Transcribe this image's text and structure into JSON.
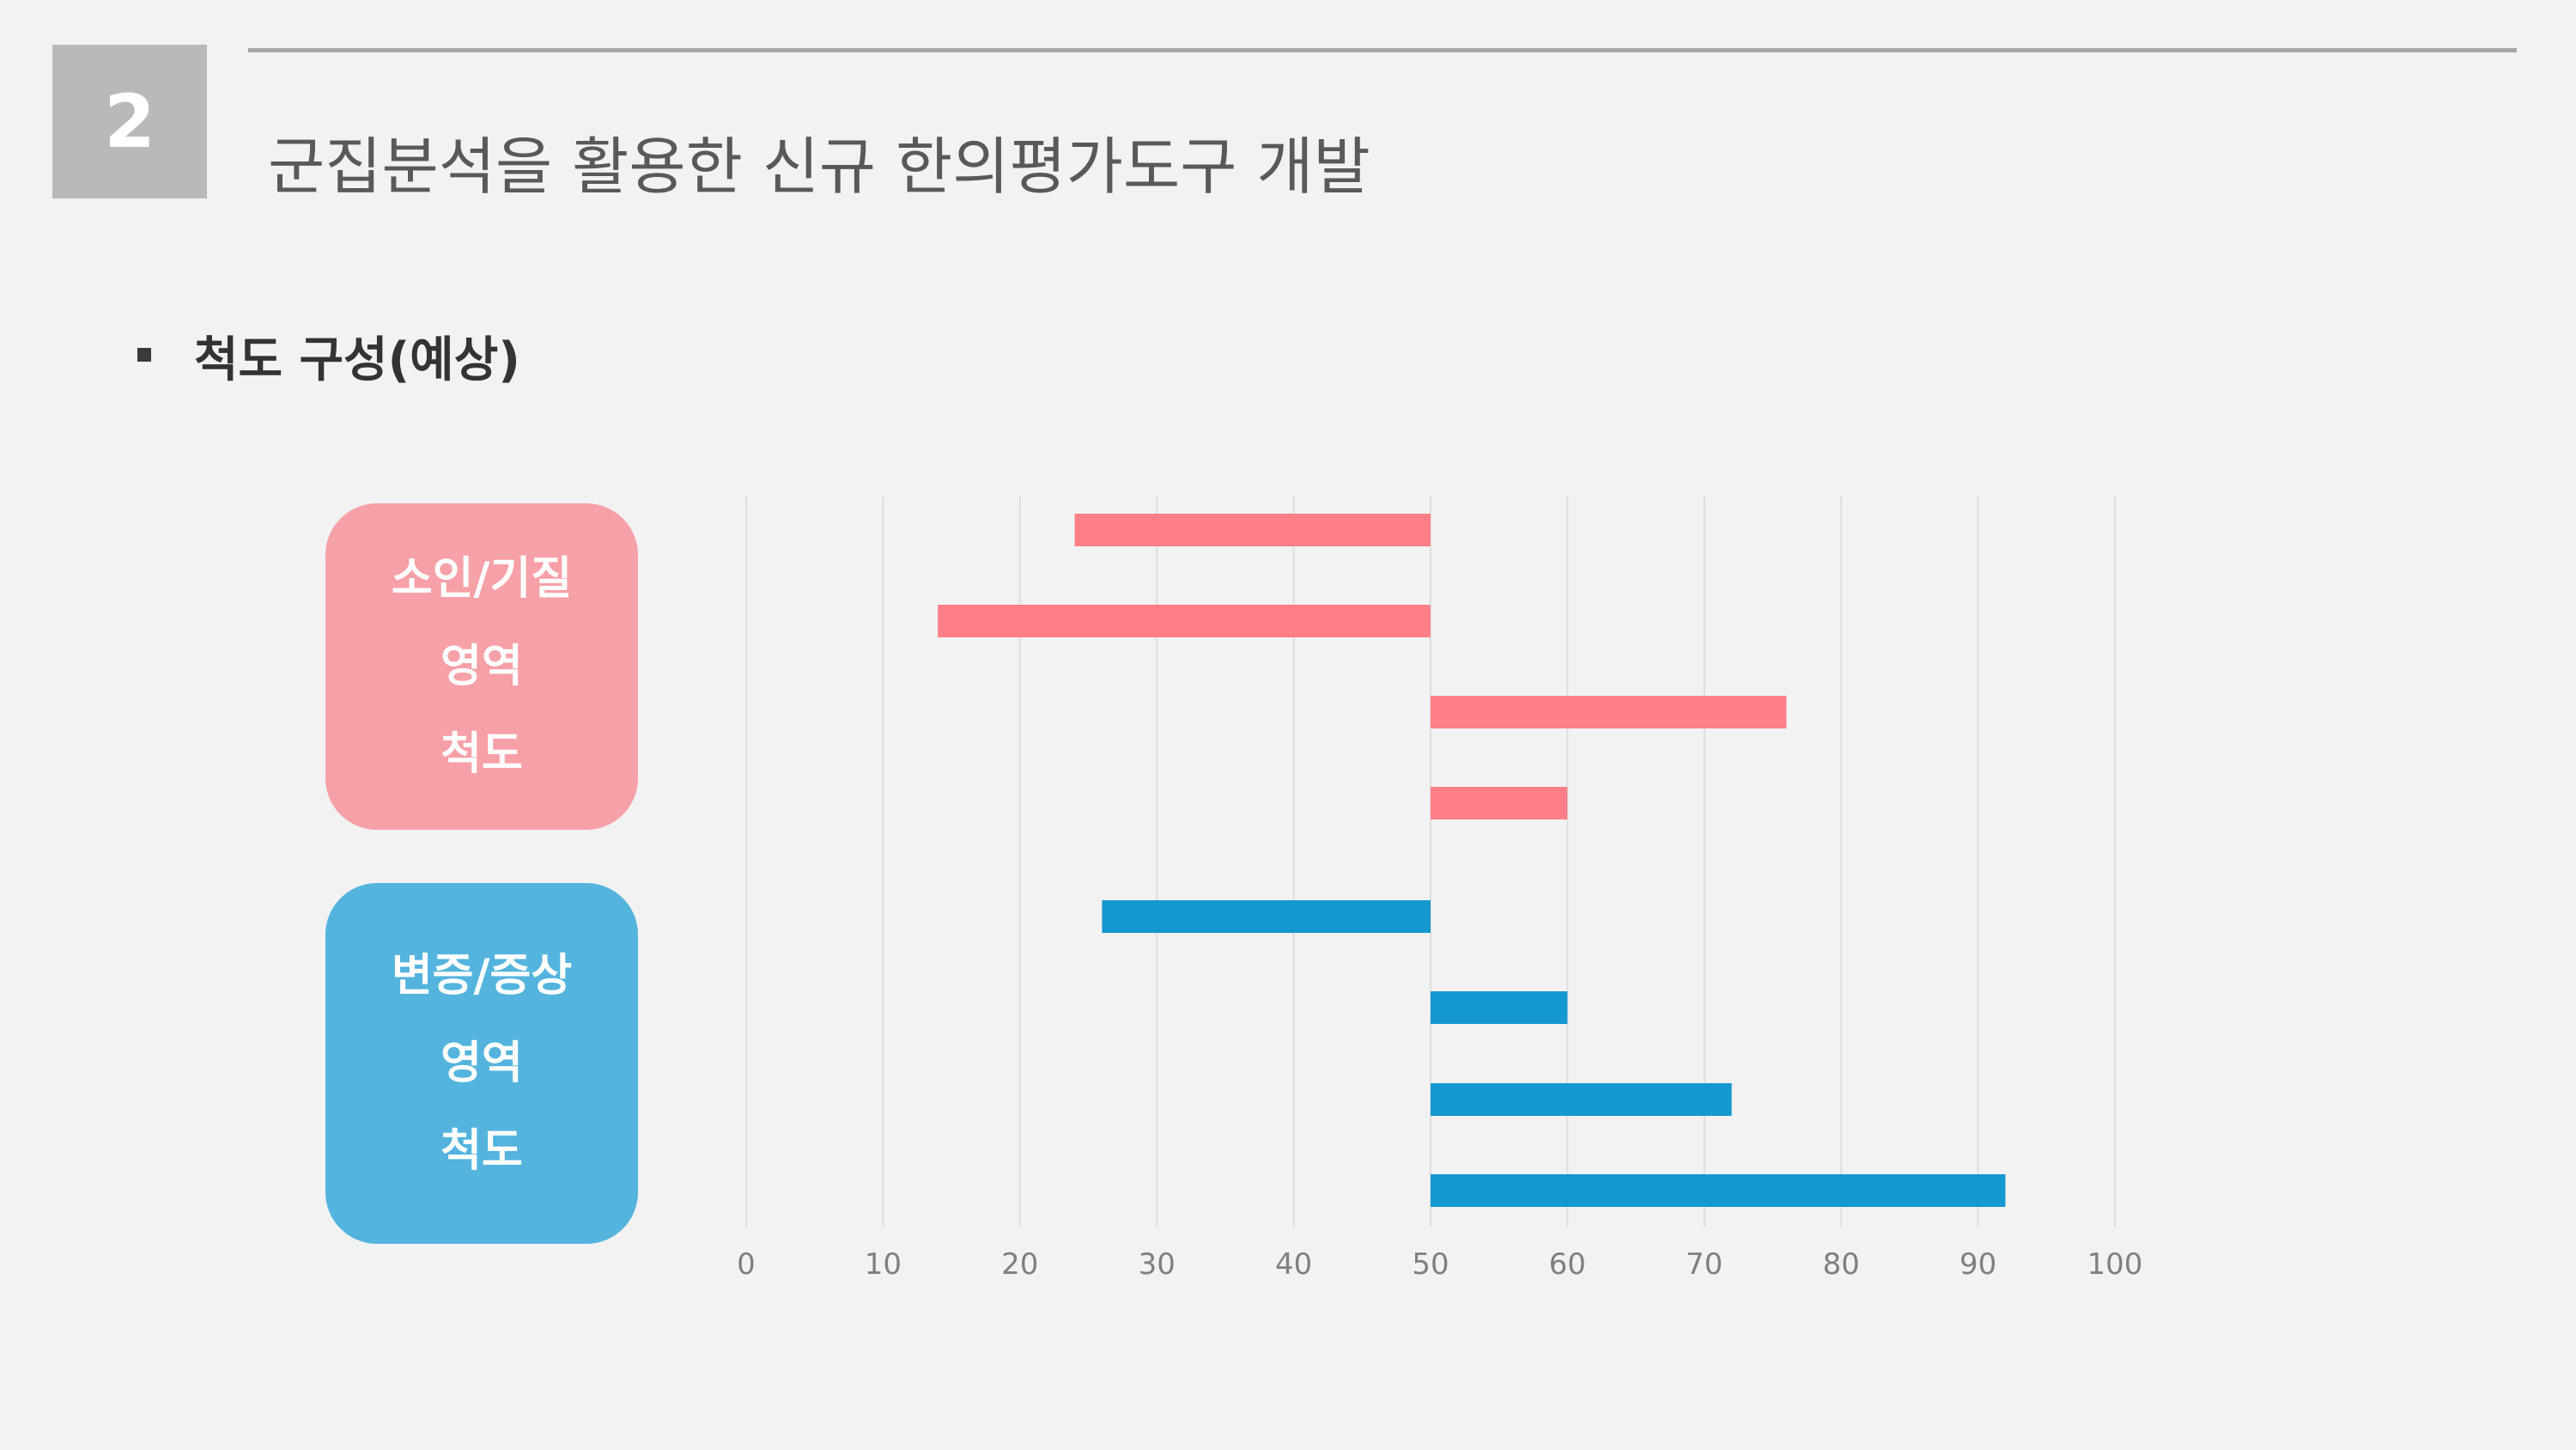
{
  "slide": {
    "number": "2",
    "title": "군집분석을 활용한 신규 한의평가도구 개발",
    "bullet": "척도 구성(예상)"
  },
  "categories": [
    {
      "lines": [
        "소인/기질",
        "영역",
        "척도"
      ],
      "color": "#f6a0a8"
    },
    {
      "lines": [
        "변증/증상",
        "영역",
        "척도"
      ],
      "color": "#54b4de"
    }
  ],
  "chart_data": {
    "type": "bar",
    "orientation": "horizontal",
    "title": "",
    "xlabel": "",
    "ylabel": "",
    "xlim": [
      0,
      100
    ],
    "x_ticks": [
      0,
      10,
      20,
      30,
      40,
      50,
      60,
      70,
      80,
      90,
      100
    ],
    "grid": true,
    "baseline": 50,
    "series": [
      {
        "color": "#ff7f88",
        "bars": [
          {
            "start": 24,
            "end": 50
          },
          {
            "start": 14,
            "end": 50
          },
          {
            "start": 50,
            "end": 76
          },
          {
            "start": 50,
            "end": 60
          }
        ]
      },
      {
        "color": "#1597d0",
        "bars": [
          {
            "start": 26,
            "end": 50
          },
          {
            "start": 50,
            "end": 60
          },
          {
            "start": 50,
            "end": 72
          },
          {
            "start": 50,
            "end": 92
          }
        ]
      }
    ]
  }
}
